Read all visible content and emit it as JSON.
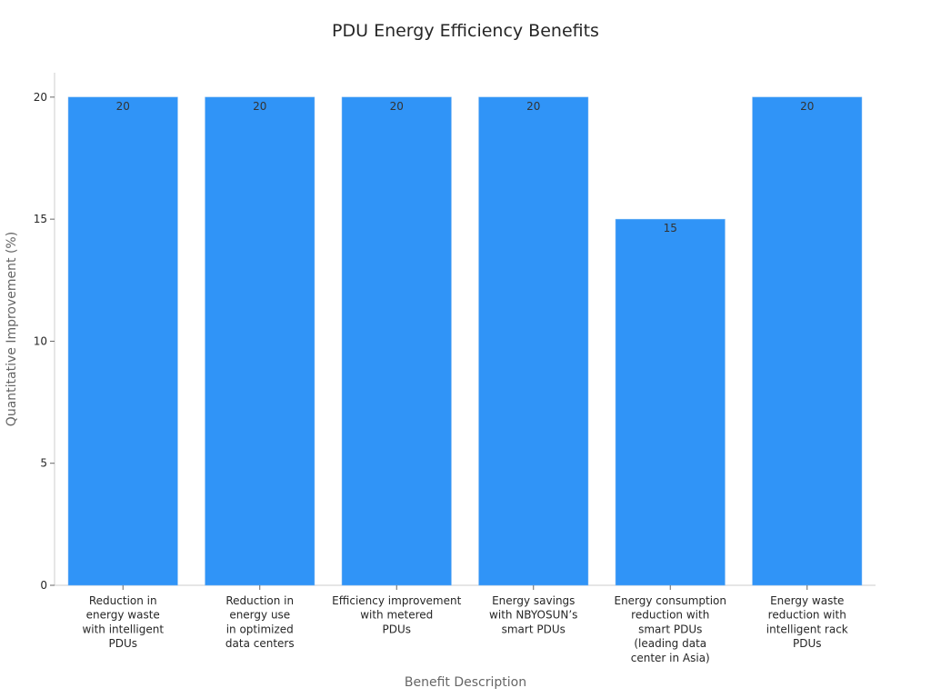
{
  "chart_data": {
    "type": "bar",
    "title": "PDU Energy Efficiency Benefits",
    "xlabel": "Benefit Description",
    "ylabel": "Quantitative Improvement (%)",
    "categories": [
      "Reduction in\nenergy waste\nwith intelligent\nPDUs",
      "Reduction in\nenergy use\nin optimized\ndata centers",
      "Efficiency improvement\nwith metered\nPDUs",
      "Energy savings\nwith NBYOSUN’s\nsmart PDUs",
      "Energy consumption\nreduction with\nsmart PDUs\n(leading data\ncenter in Asia)",
      "Energy waste\nreduction with\nintelligent rack\nPDUs"
    ],
    "values": [
      20,
      20,
      20,
      20,
      15,
      20
    ],
    "data_labels": [
      "20",
      "20",
      "20",
      "20",
      "15",
      "20"
    ],
    "yticks": [
      0,
      5,
      10,
      15,
      20
    ],
    "ylim": [
      0,
      21
    ],
    "grid": false,
    "bar_color": "#3094f7"
  }
}
